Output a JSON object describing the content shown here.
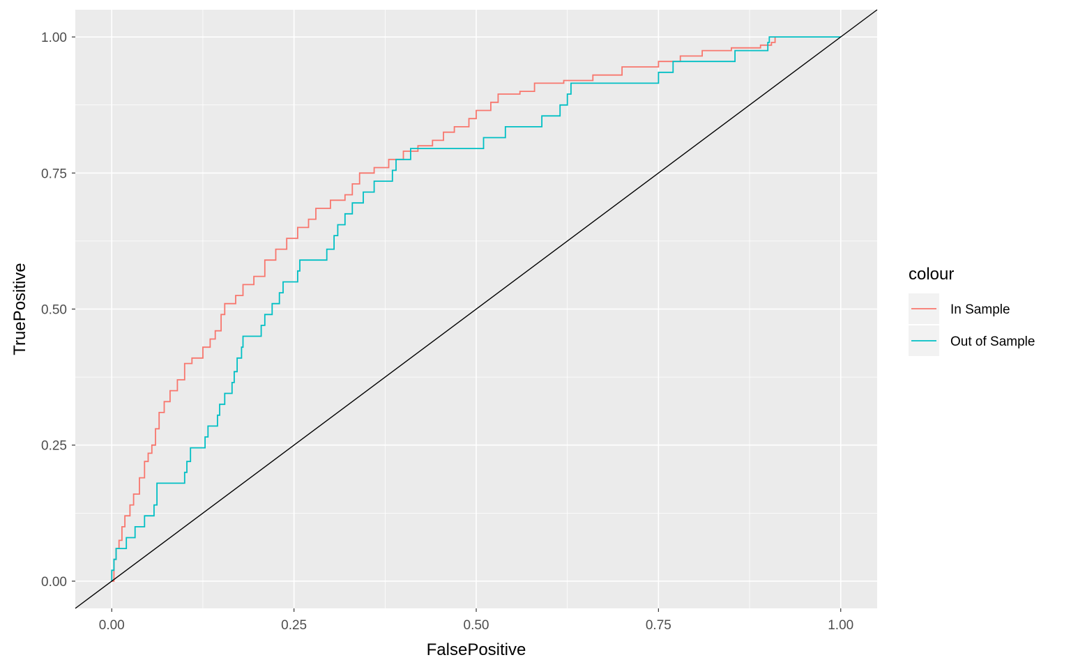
{
  "chart_data": {
    "type": "line",
    "title": "",
    "xlabel": "FalsePositive",
    "ylabel": "TruePositive",
    "xlim": [
      -0.05,
      1.05
    ],
    "ylim": [
      -0.05,
      1.05
    ],
    "x_ticks": [
      "0.00",
      "0.25",
      "0.50",
      "0.75",
      "1.00"
    ],
    "y_ticks": [
      "0.00",
      "0.25",
      "0.50",
      "0.75",
      "1.00"
    ],
    "x_tick_values": [
      0,
      0.25,
      0.5,
      0.75,
      1.0
    ],
    "y_tick_values": [
      0,
      0.25,
      0.5,
      0.75,
      1.0
    ],
    "grid": true,
    "panel_background": "#ebebeb",
    "legend": {
      "title": "colour",
      "position": "right"
    },
    "series": [
      {
        "name": "In Sample",
        "color": "#f8766d",
        "points": [
          [
            0.0,
            0.0
          ],
          [
            0.003,
            0.04
          ],
          [
            0.006,
            0.06
          ],
          [
            0.01,
            0.075
          ],
          [
            0.014,
            0.1
          ],
          [
            0.018,
            0.12
          ],
          [
            0.025,
            0.14
          ],
          [
            0.03,
            0.16
          ],
          [
            0.038,
            0.19
          ],
          [
            0.045,
            0.22
          ],
          [
            0.05,
            0.235
          ],
          [
            0.055,
            0.25
          ],
          [
            0.06,
            0.28
          ],
          [
            0.065,
            0.31
          ],
          [
            0.072,
            0.33
          ],
          [
            0.08,
            0.35
          ],
          [
            0.09,
            0.37
          ],
          [
            0.1,
            0.4
          ],
          [
            0.11,
            0.41
          ],
          [
            0.125,
            0.43
          ],
          [
            0.135,
            0.445
          ],
          [
            0.142,
            0.46
          ],
          [
            0.15,
            0.49
          ],
          [
            0.155,
            0.51
          ],
          [
            0.17,
            0.525
          ],
          [
            0.18,
            0.545
          ],
          [
            0.195,
            0.56
          ],
          [
            0.21,
            0.59
          ],
          [
            0.225,
            0.61
          ],
          [
            0.24,
            0.63
          ],
          [
            0.255,
            0.65
          ],
          [
            0.27,
            0.665
          ],
          [
            0.28,
            0.685
          ],
          [
            0.3,
            0.7
          ],
          [
            0.32,
            0.71
          ],
          [
            0.33,
            0.73
          ],
          [
            0.34,
            0.75
          ],
          [
            0.36,
            0.76
          ],
          [
            0.38,
            0.775
          ],
          [
            0.4,
            0.79
          ],
          [
            0.42,
            0.8
          ],
          [
            0.44,
            0.81
          ],
          [
            0.455,
            0.825
          ],
          [
            0.47,
            0.835
          ],
          [
            0.49,
            0.85
          ],
          [
            0.5,
            0.865
          ],
          [
            0.52,
            0.88
          ],
          [
            0.53,
            0.895
          ],
          [
            0.56,
            0.9
          ],
          [
            0.58,
            0.915
          ],
          [
            0.62,
            0.92
          ],
          [
            0.66,
            0.93
          ],
          [
            0.7,
            0.945
          ],
          [
            0.75,
            0.955
          ],
          [
            0.78,
            0.965
          ],
          [
            0.81,
            0.975
          ],
          [
            0.85,
            0.98
          ],
          [
            0.89,
            0.985
          ],
          [
            0.905,
            0.99
          ],
          [
            0.91,
            1.0
          ]
        ]
      },
      {
        "name": "Out of Sample",
        "color": "#00bfc4",
        "points": [
          [
            0.0,
            0.0
          ],
          [
            0.0,
            0.02
          ],
          [
            0.003,
            0.04
          ],
          [
            0.006,
            0.06
          ],
          [
            0.02,
            0.08
          ],
          [
            0.032,
            0.1
          ],
          [
            0.045,
            0.12
          ],
          [
            0.058,
            0.14
          ],
          [
            0.062,
            0.18
          ],
          [
            0.1,
            0.2
          ],
          [
            0.103,
            0.22
          ],
          [
            0.108,
            0.245
          ],
          [
            0.128,
            0.265
          ],
          [
            0.132,
            0.285
          ],
          [
            0.145,
            0.305
          ],
          [
            0.148,
            0.325
          ],
          [
            0.155,
            0.345
          ],
          [
            0.165,
            0.365
          ],
          [
            0.168,
            0.385
          ],
          [
            0.172,
            0.41
          ],
          [
            0.178,
            0.43
          ],
          [
            0.18,
            0.45
          ],
          [
            0.205,
            0.47
          ],
          [
            0.21,
            0.49
          ],
          [
            0.22,
            0.51
          ],
          [
            0.23,
            0.53
          ],
          [
            0.235,
            0.55
          ],
          [
            0.255,
            0.57
          ],
          [
            0.258,
            0.59
          ],
          [
            0.295,
            0.61
          ],
          [
            0.305,
            0.635
          ],
          [
            0.31,
            0.655
          ],
          [
            0.32,
            0.675
          ],
          [
            0.33,
            0.695
          ],
          [
            0.345,
            0.715
          ],
          [
            0.36,
            0.735
          ],
          [
            0.385,
            0.755
          ],
          [
            0.39,
            0.775
          ],
          [
            0.41,
            0.795
          ],
          [
            0.51,
            0.815
          ],
          [
            0.54,
            0.835
          ],
          [
            0.59,
            0.855
          ],
          [
            0.615,
            0.875
          ],
          [
            0.625,
            0.895
          ],
          [
            0.63,
            0.915
          ],
          [
            0.75,
            0.935
          ],
          [
            0.77,
            0.955
          ],
          [
            0.855,
            0.975
          ],
          [
            0.9,
            0.99
          ],
          [
            0.902,
            1.0
          ],
          [
            1.0,
            1.0
          ]
        ]
      }
    ],
    "reference_line": {
      "color": "#000000",
      "slope": 1,
      "intercept": 0
    }
  }
}
